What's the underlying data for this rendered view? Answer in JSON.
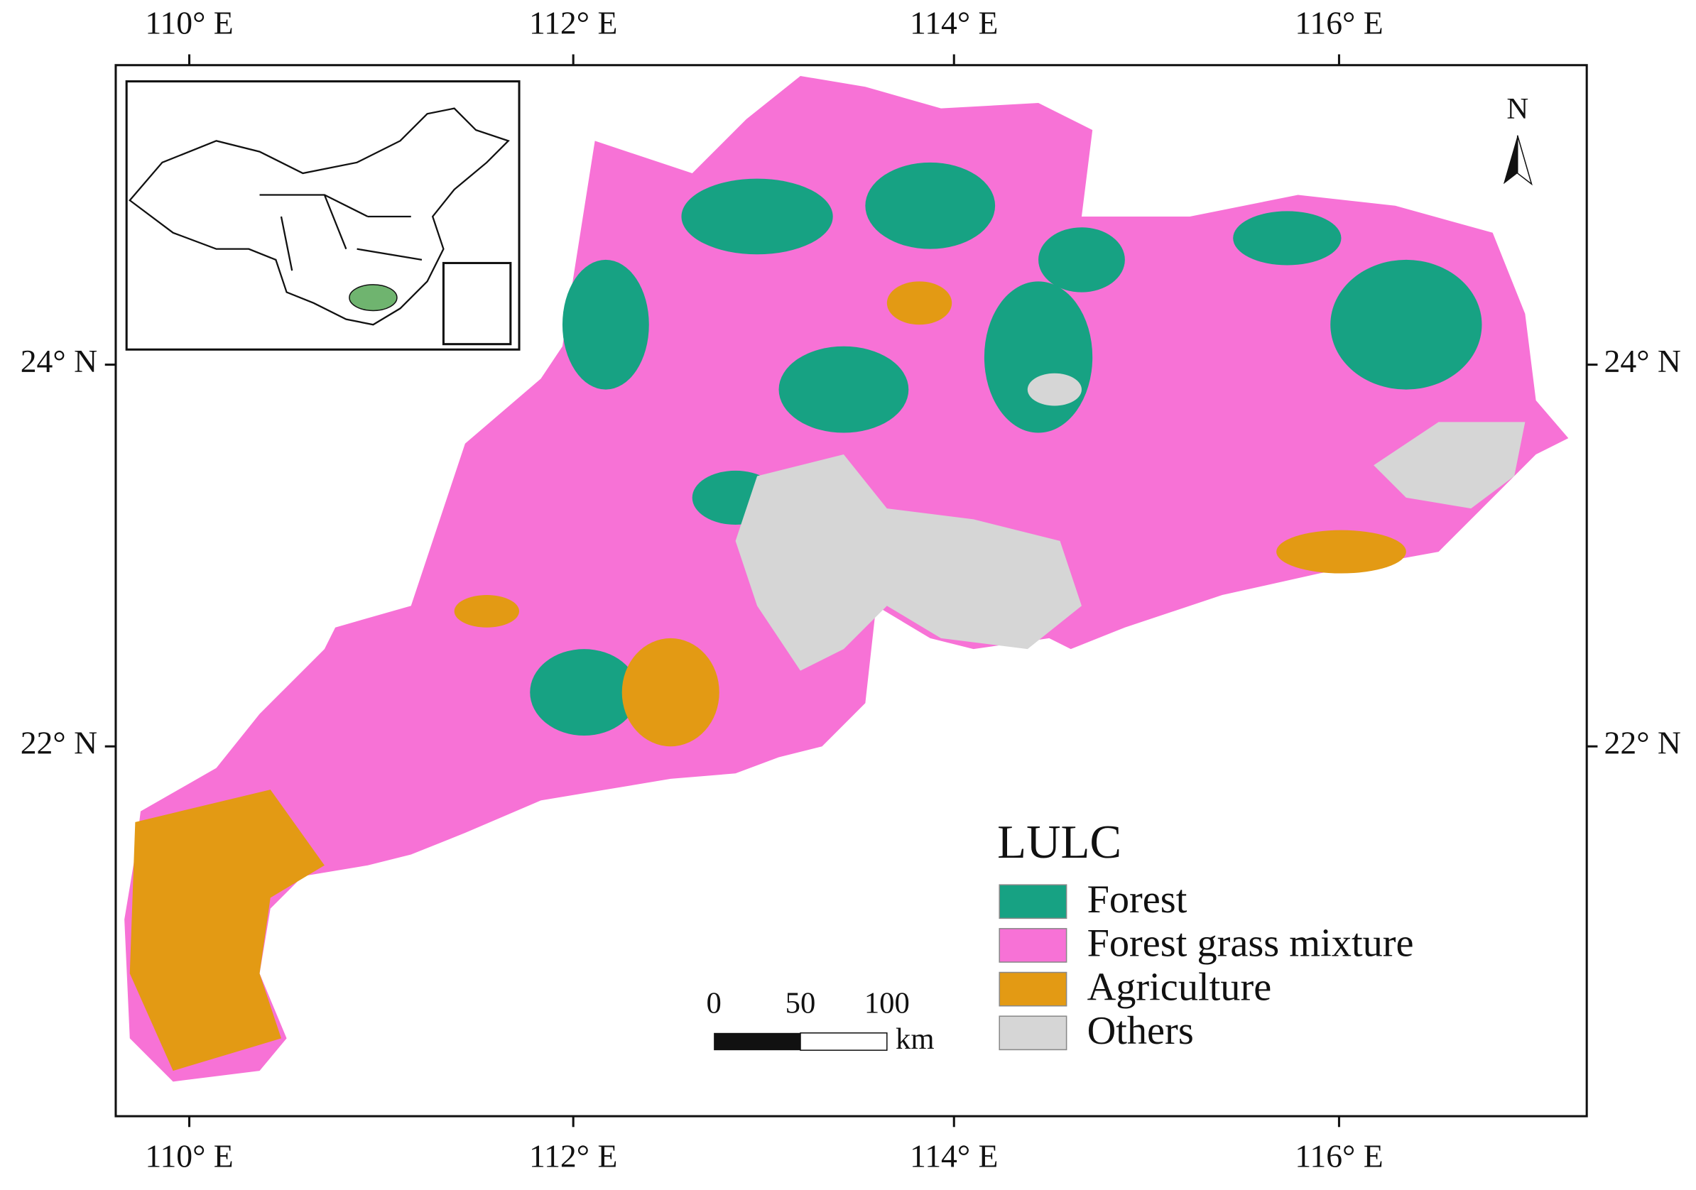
{
  "map": {
    "longitude_labels": [
      "110° E",
      "112° E",
      "114° E",
      "116° E"
    ],
    "latitude_labels": [
      "24° N",
      "22° N"
    ],
    "north_arrow": "N",
    "legend": {
      "title": "LULC",
      "items": [
        {
          "label": "Forest",
          "color": "#17a283"
        },
        {
          "label": "Forest grass mixture",
          "color": "#f772d6"
        },
        {
          "label": "Agriculture",
          "color": "#e39a14"
        },
        {
          "label": "Others",
          "color": "#d6d6d6"
        }
      ]
    },
    "scale_bar": {
      "labels": [
        "0",
        "50",
        "100"
      ],
      "unit": "km"
    }
  }
}
